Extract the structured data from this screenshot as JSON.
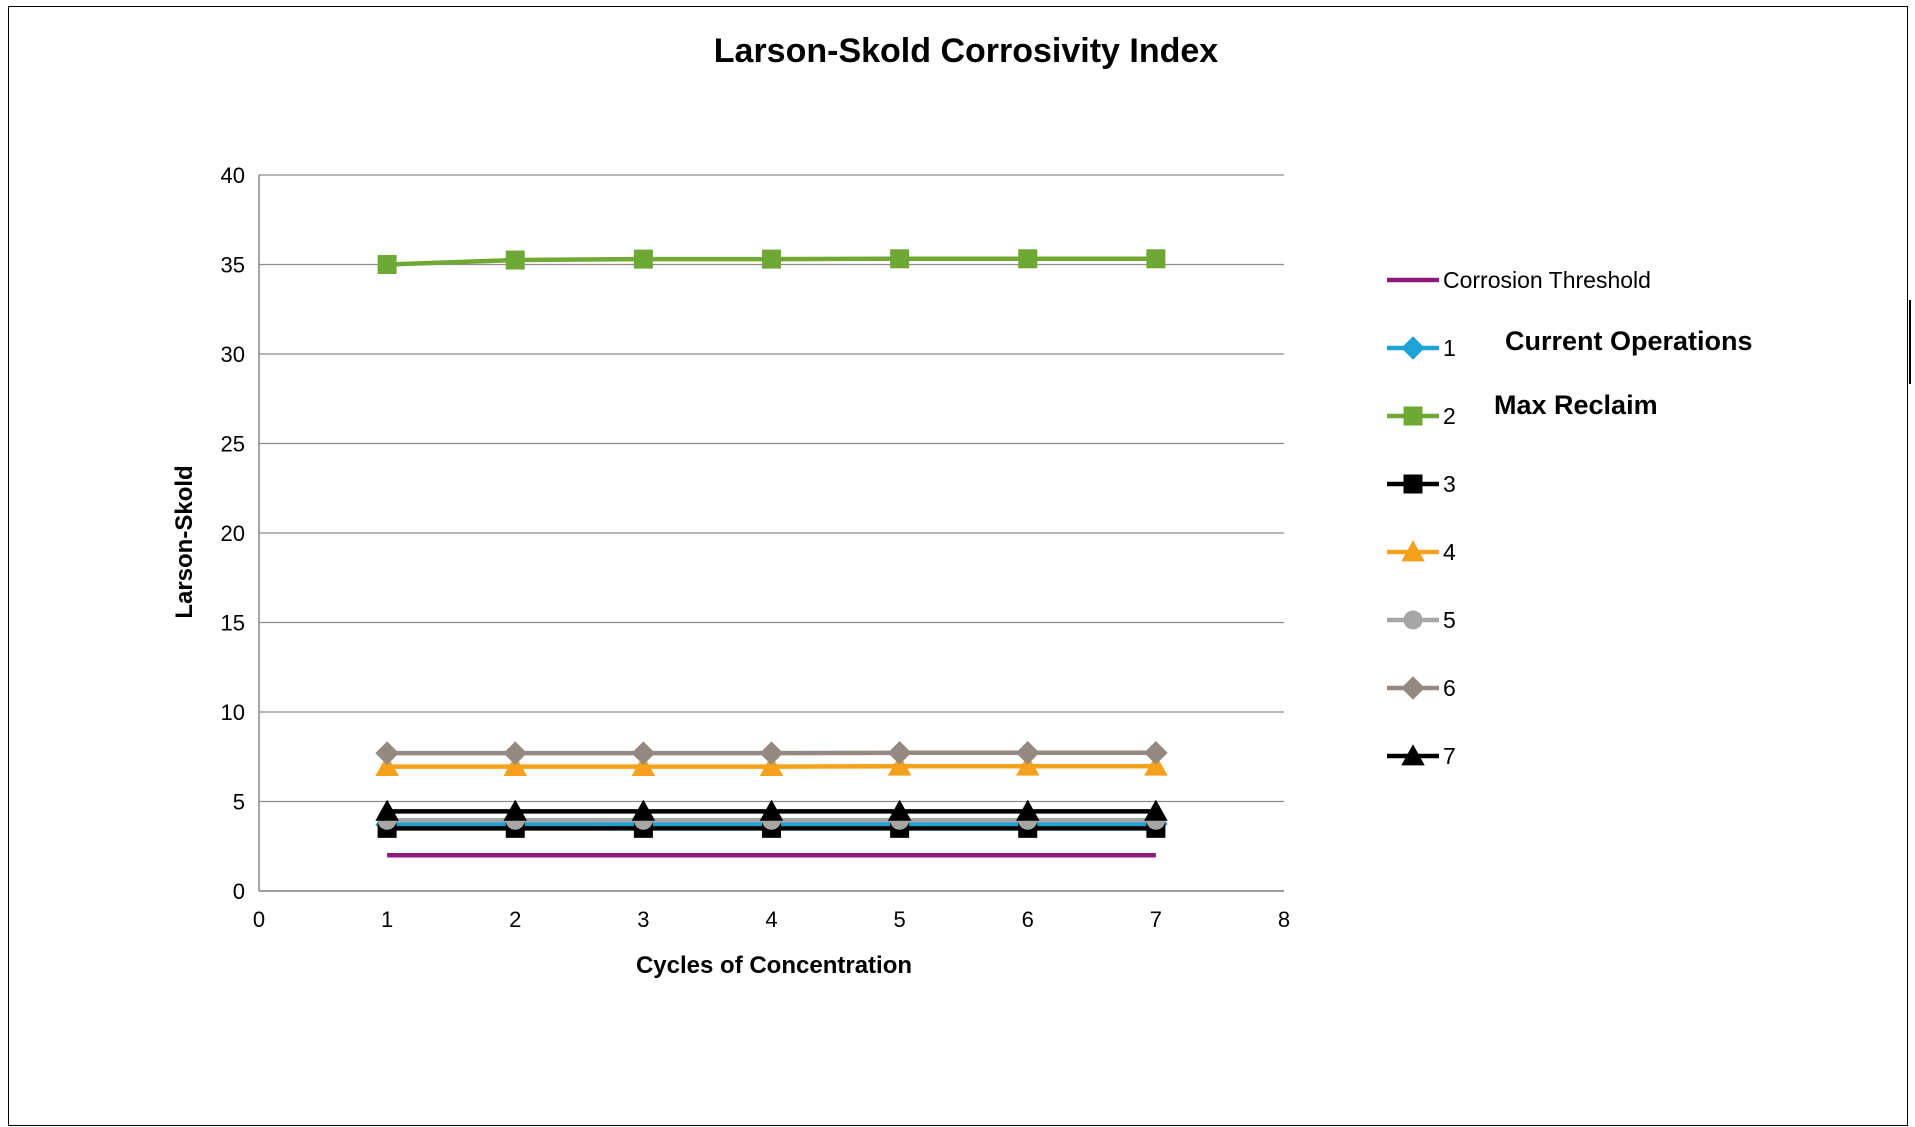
{
  "chart_data": {
    "type": "line",
    "title": "Larson-Skold Corrosivity Index",
    "xlabel": "Cycles of Concentration",
    "ylabel": "Larson-Skold",
    "xlim": [
      0,
      8
    ],
    "ylim": [
      0,
      40
    ],
    "xticks": [
      "0",
      "1",
      "2",
      "3",
      "4",
      "5",
      "6",
      "7",
      "8"
    ],
    "yticks": [
      "0",
      "5",
      "10",
      "15",
      "20",
      "25",
      "30",
      "35",
      "40"
    ],
    "grid": "horizontal",
    "legend_position": "right",
    "x": [
      1,
      2,
      3,
      4,
      5,
      6,
      7
    ],
    "series": [
      {
        "name": "Corrosion Threshold",
        "color": "#8B1A7A",
        "marker": "none",
        "values": [
          2.0,
          2.0,
          2.0,
          2.0,
          2.0,
          2.0,
          2.0
        ]
      },
      {
        "name": "1",
        "color": "#1FA2D6",
        "marker": "diamond",
        "values": [
          3.7,
          3.7,
          3.75,
          3.75,
          3.75,
          3.75,
          3.75
        ]
      },
      {
        "name": "2",
        "color": "#6FA834",
        "marker": "square",
        "values": [
          35.0,
          35.25,
          35.3,
          35.3,
          35.32,
          35.32,
          35.32
        ]
      },
      {
        "name": "3",
        "color": "#000000",
        "marker": "square",
        "values": [
          3.5,
          3.5,
          3.5,
          3.5,
          3.5,
          3.5,
          3.5
        ]
      },
      {
        "name": "4",
        "color": "#F6A11E",
        "marker": "triangle",
        "values": [
          6.95,
          6.95,
          6.95,
          6.95,
          6.97,
          6.97,
          6.97
        ]
      },
      {
        "name": "5",
        "color": "#A6A6A6",
        "marker": "circle",
        "values": [
          3.95,
          3.95,
          3.95,
          3.95,
          3.95,
          3.95,
          3.95
        ]
      },
      {
        "name": "6",
        "color": "#948A82",
        "marker": "diamond",
        "values": [
          7.7,
          7.7,
          7.7,
          7.7,
          7.72,
          7.72,
          7.72
        ]
      },
      {
        "name": "7",
        "color": "#000000",
        "marker": "triangle",
        "values": [
          4.45,
          4.45,
          4.45,
          4.45,
          4.45,
          4.45,
          4.45
        ]
      }
    ],
    "annotations": [
      "Current Operations",
      "Max Reclaim"
    ]
  }
}
